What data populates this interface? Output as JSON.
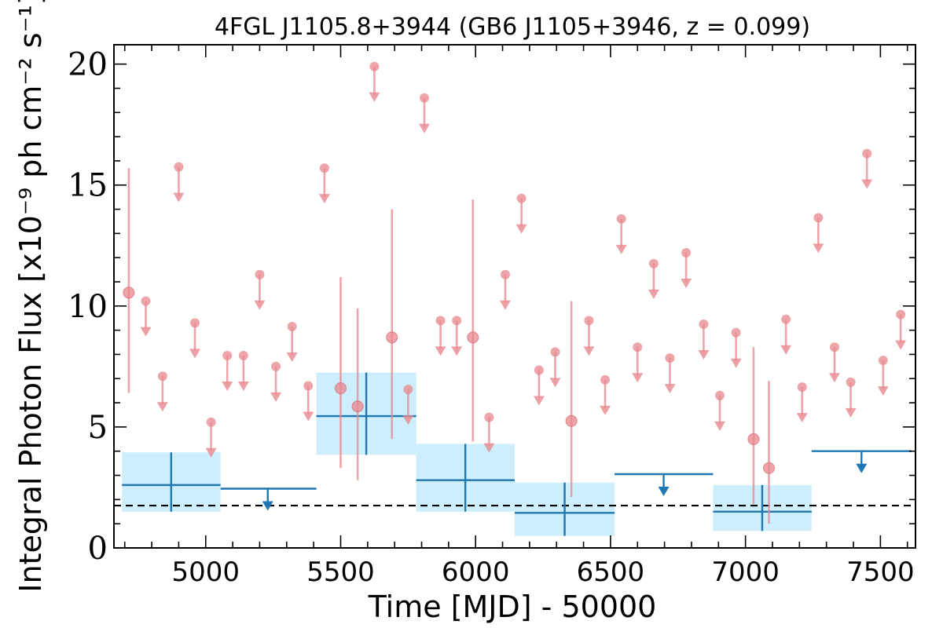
{
  "chart_data": {
    "type": "scatter",
    "title": "4FGL J1105.8+3944 (GB6 J1105+3946, z = 0.099)",
    "xlabel": "Time [MJD] - 50000",
    "ylabel": "Integral Photon Flux [x10⁻⁹ ph cm⁻² s⁻¹]",
    "xlim": [
      4660,
      7630
    ],
    "ylim": [
      0,
      20.8
    ],
    "xticks": [
      5000,
      5500,
      6000,
      6500,
      7000,
      7500
    ],
    "yticks": [
      0,
      5,
      10,
      15,
      20
    ],
    "reference_line": 1.75,
    "colors": {
      "short_bins": "#e8878e",
      "long_bins": "#1f77b4",
      "long_bins_band": "#cdeefc",
      "reference": "#000000"
    },
    "short_bin_detections": [
      {
        "x": 4715,
        "y": 10.55,
        "ylo": 6.4,
        "yhi": 15.7
      },
      {
        "x": 5500,
        "y": 6.6,
        "ylo": 3.3,
        "yhi": 11.2
      },
      {
        "x": 5563,
        "y": 5.85,
        "ylo": 2.8,
        "yhi": 9.9
      },
      {
        "x": 5690,
        "y": 8.7,
        "ylo": 4.5,
        "yhi": 14.0
      },
      {
        "x": 5990,
        "y": 8.7,
        "ylo": 4.4,
        "yhi": 14.4
      },
      {
        "x": 6355,
        "y": 5.25,
        "ylo": 2.1,
        "yhi": 10.2
      },
      {
        "x": 7030,
        "y": 4.5,
        "ylo": 1.8,
        "yhi": 8.3
      },
      {
        "x": 7087,
        "y": 3.3,
        "ylo": 1.0,
        "yhi": 6.9
      }
    ],
    "short_bin_upper_limits": [
      {
        "x": 4778,
        "y": 10.2
      },
      {
        "x": 4840,
        "y": 7.1
      },
      {
        "x": 4900,
        "y": 15.75
      },
      {
        "x": 4960,
        "y": 9.3
      },
      {
        "x": 5020,
        "y": 5.2
      },
      {
        "x": 5080,
        "y": 7.95
      },
      {
        "x": 5140,
        "y": 7.95
      },
      {
        "x": 5200,
        "y": 11.3
      },
      {
        "x": 5260,
        "y": 7.5
      },
      {
        "x": 5320,
        "y": 9.15
      },
      {
        "x": 5380,
        "y": 6.7
      },
      {
        "x": 5440,
        "y": 15.7
      },
      {
        "x": 5625,
        "y": 19.9
      },
      {
        "x": 5750,
        "y": 6.55
      },
      {
        "x": 5810,
        "y": 18.6
      },
      {
        "x": 5870,
        "y": 9.4
      },
      {
        "x": 5930,
        "y": 9.4
      },
      {
        "x": 6050,
        "y": 5.4
      },
      {
        "x": 6110,
        "y": 11.3
      },
      {
        "x": 6170,
        "y": 14.45
      },
      {
        "x": 6235,
        "y": 7.35
      },
      {
        "x": 6295,
        "y": 8.1
      },
      {
        "x": 6420,
        "y": 9.4
      },
      {
        "x": 6480,
        "y": 6.95
      },
      {
        "x": 6540,
        "y": 13.6
      },
      {
        "x": 6600,
        "y": 8.3
      },
      {
        "x": 6660,
        "y": 11.75
      },
      {
        "x": 6720,
        "y": 7.85
      },
      {
        "x": 6780,
        "y": 12.2
      },
      {
        "x": 6845,
        "y": 9.25
      },
      {
        "x": 6905,
        "y": 6.3
      },
      {
        "x": 6965,
        "y": 8.9
      },
      {
        "x": 7150,
        "y": 9.45
      },
      {
        "x": 7210,
        "y": 6.65
      },
      {
        "x": 7270,
        "y": 13.65
      },
      {
        "x": 7330,
        "y": 8.3
      },
      {
        "x": 7390,
        "y": 6.85
      },
      {
        "x": 7450,
        "y": 16.3
      },
      {
        "x": 7510,
        "y": 7.75
      },
      {
        "x": 7575,
        "y": 9.65
      }
    ],
    "long_bin_detections": [
      {
        "x0": 4690,
        "x1": 5055,
        "x": 4872,
        "y": 2.6,
        "ylo": 1.5,
        "yhi": 3.95
      },
      {
        "x0": 5410,
        "x1": 5780,
        "x": 5595,
        "y": 5.45,
        "ylo": 3.85,
        "yhi": 7.25
      },
      {
        "x0": 5780,
        "x1": 6145,
        "x": 5962,
        "y": 2.8,
        "ylo": 1.5,
        "yhi": 4.3
      },
      {
        "x0": 6145,
        "x1": 6515,
        "x": 6330,
        "y": 1.45,
        "ylo": 0.5,
        "yhi": 2.7
      },
      {
        "x0": 6880,
        "x1": 7245,
        "x": 7062,
        "y": 1.5,
        "ylo": 0.7,
        "yhi": 2.6
      }
    ],
    "long_bin_upper_limits": [
      {
        "x0": 5055,
        "x1": 5410,
        "x": 5230,
        "y": 2.45
      },
      {
        "x0": 6515,
        "x1": 6880,
        "x": 6697,
        "y": 3.05
      },
      {
        "x0": 7245,
        "x1": 7615,
        "x": 7430,
        "y": 4.0
      }
    ]
  }
}
